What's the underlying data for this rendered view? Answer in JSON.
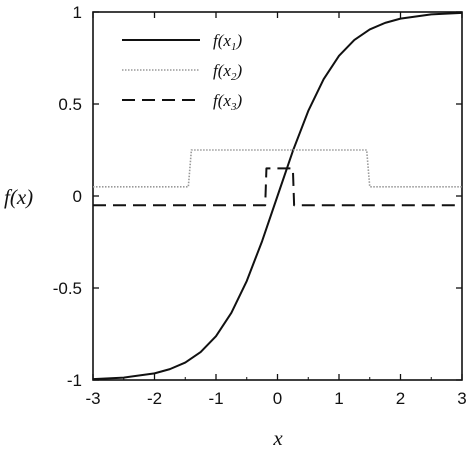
{
  "chart_data": {
    "type": "line",
    "title": "",
    "xlabel": "x",
    "ylabel": "f(x)",
    "xlim": [
      -3,
      3
    ],
    "ylim": [
      -1,
      1
    ],
    "xticks": [
      "-3",
      "-2",
      "-1",
      "0",
      "1",
      "2",
      "3"
    ],
    "yticks": [
      "1",
      "0.5",
      "0",
      "-0.5",
      "-1"
    ],
    "grid": false,
    "legend_position": "top-left",
    "series": [
      {
        "name": "f(x1)",
        "label_base": "f(x",
        "label_sub": "1",
        "label_end": ")",
        "style": "solid",
        "color": "#111111",
        "points": [
          [
            -3,
            -0.995
          ],
          [
            -2.5,
            -0.987
          ],
          [
            -2,
            -0.964
          ],
          [
            -1.75,
            -0.941
          ],
          [
            -1.5,
            -0.905
          ],
          [
            -1.25,
            -0.848
          ],
          [
            -1,
            -0.762
          ],
          [
            -0.75,
            -0.635
          ],
          [
            -0.5,
            -0.462
          ],
          [
            -0.25,
            -0.245
          ],
          [
            0,
            0
          ],
          [
            0.25,
            0.245
          ],
          [
            0.5,
            0.462
          ],
          [
            0.75,
            0.635
          ],
          [
            1,
            0.762
          ],
          [
            1.25,
            0.848
          ],
          [
            1.5,
            0.905
          ],
          [
            1.75,
            0.941
          ],
          [
            2,
            0.964
          ],
          [
            2.5,
            0.987
          ],
          [
            3,
            0.995
          ]
        ]
      },
      {
        "name": "f(x2)",
        "label_base": "f(x",
        "label_sub": "2",
        "label_end": ")",
        "style": "dotted",
        "color": "#999999",
        "points": [
          [
            -3,
            0.05
          ],
          [
            -1.45,
            0.05
          ],
          [
            -1.4,
            0.25
          ],
          [
            1.45,
            0.25
          ],
          [
            1.5,
            0.05
          ],
          [
            3,
            0.05
          ]
        ]
      },
      {
        "name": "f(x3)",
        "label_base": "f(x",
        "label_sub": "3",
        "label_end": ")",
        "style": "dashed",
        "color": "#111111",
        "points": [
          [
            -3,
            -0.05
          ],
          [
            -0.2,
            -0.05
          ],
          [
            -0.18,
            0.15
          ],
          [
            0.25,
            0.15
          ],
          [
            0.27,
            -0.05
          ],
          [
            3,
            -0.05
          ]
        ]
      }
    ]
  }
}
